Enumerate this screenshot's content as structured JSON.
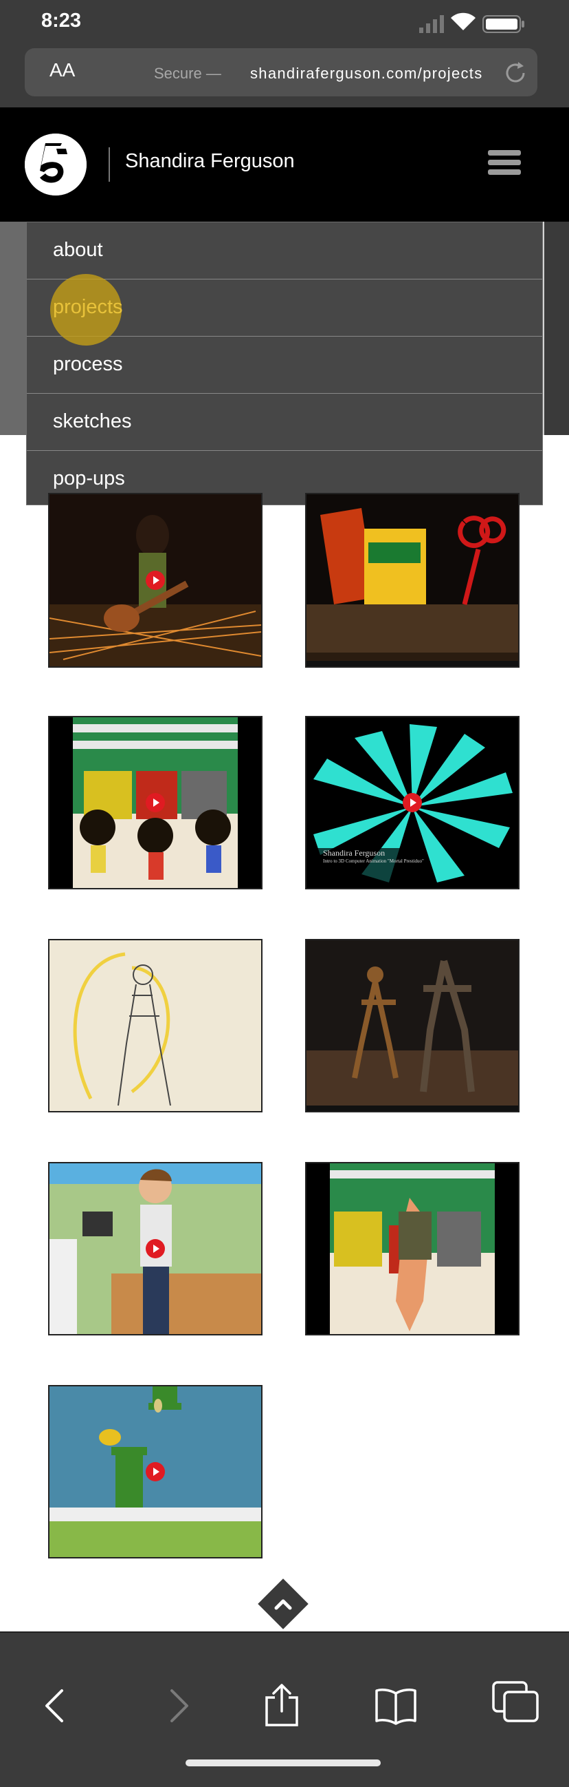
{
  "status": {
    "time": "8:23"
  },
  "browser": {
    "aa_label": "AA",
    "secure_label": "Secure",
    "separator": "—",
    "url": "shandiraferguson.com/projects"
  },
  "header": {
    "site_name": "Shandira Ferguson"
  },
  "menu": {
    "items": [
      {
        "label": "about"
      },
      {
        "label": "projects",
        "active": true
      },
      {
        "label": "process"
      },
      {
        "label": "sketches"
      },
      {
        "label": "pop-ups"
      }
    ]
  },
  "videos": [
    {
      "icon": "guitarist-video-thumbnail",
      "has_play": true
    },
    {
      "icon": "crayola-still-life-video-thumbnail",
      "has_play": false
    },
    {
      "icon": "asn-characters-video-thumbnail",
      "has_play": true
    },
    {
      "icon": "cyan-rays-animation-thumbnail",
      "has_play": true,
      "caption_title": "Shandira Ferguson",
      "caption_sub": "Intro to 3D Computer Animation \"Mortal Prestiduo\""
    },
    {
      "icon": "figure-sketch-video-thumbnail",
      "has_play": false
    },
    {
      "icon": "skeleton-figures-video-thumbnail",
      "has_play": false
    },
    {
      "icon": "kitchen-character-video-thumbnail",
      "has_play": true
    },
    {
      "icon": "asn-figure-video-thumbnail",
      "has_play": false
    },
    {
      "icon": "flappy-bird-video-thumbnail",
      "has_play": true
    }
  ],
  "colors": {
    "accent": "#e8c23a",
    "chrome": "#3b3b3b",
    "menu_bg": "#474747"
  }
}
